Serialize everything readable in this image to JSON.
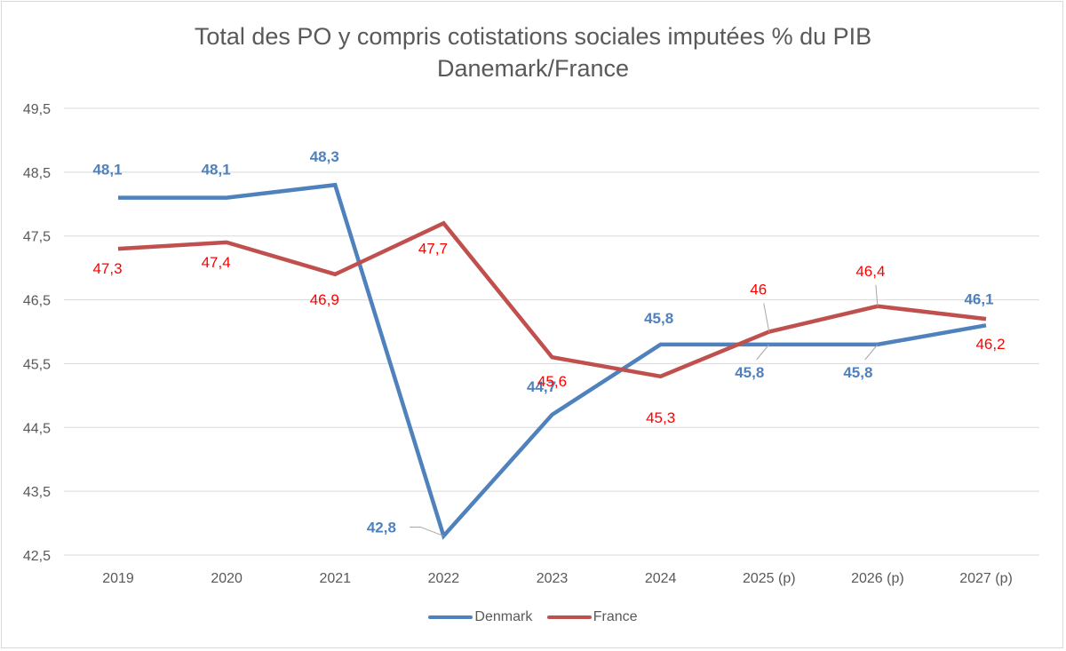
{
  "chart_data": {
    "type": "line",
    "title": "Total des PO y compris cotistations sociales imputées % du PIB",
    "subtitle": "Danemark/France",
    "xlabel": "",
    "ylabel": "",
    "categories": [
      "2019",
      "2020",
      "2021",
      "2022",
      "2023",
      "2024",
      "2025 (p)",
      "2026 (p)",
      "2027 (p)"
    ],
    "ylim": [
      42.5,
      49.5
    ],
    "yticks": [
      42.5,
      43.5,
      44.5,
      45.5,
      46.5,
      47.5,
      48.5,
      49.5
    ],
    "ytick_labels": [
      "42,5",
      "43,5",
      "44,5",
      "45,5",
      "46,5",
      "47,5",
      "48,5",
      "49,5"
    ],
    "grid": true,
    "legend_position": "bottom",
    "series": [
      {
        "name": "Denmark",
        "color": "#4f81bd",
        "label_color": "#4f81bd",
        "values": [
          48.1,
          48.1,
          48.3,
          42.8,
          44.7,
          45.8,
          45.8,
          45.8,
          46.1
        ],
        "data_labels": [
          "48,1",
          "48,1",
          "48,3",
          "42,8",
          "44,7",
          "45,8",
          "45,8",
          "45,8",
          "46,1"
        ]
      },
      {
        "name": "France",
        "color": "#c0504d",
        "label_color": "#ff0000",
        "values": [
          47.3,
          47.4,
          46.9,
          47.7,
          45.6,
          45.3,
          46.0,
          46.4,
          46.2
        ],
        "data_labels": [
          "47,3",
          "47,4",
          "46,9",
          "47,7",
          "45,6",
          "45,3",
          "46",
          "46,4",
          "46,2"
        ]
      }
    ]
  }
}
